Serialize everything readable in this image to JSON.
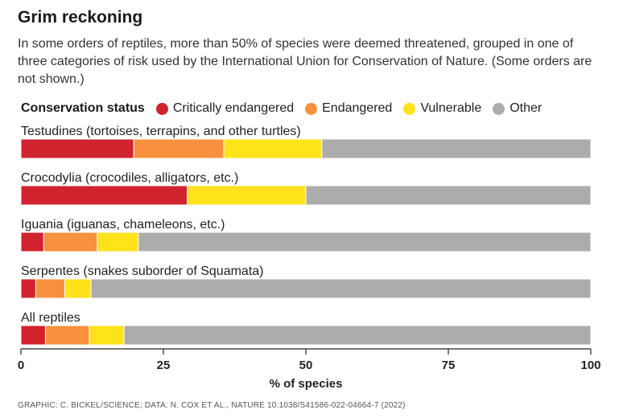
{
  "title": "Grim reckoning",
  "subtitle": "In some orders of reptiles, more than 50% of species were deemed threatened, grouped in one of three categories of risk used by the International Union for Conservation of Nature. (Some orders are not shown.)",
  "footer": "GRAPHIC: C. BICKEL/SCIENCE; DATA: N. COX ET AL., NATURE 10.1038/S41586-022-04664-7 (2022)",
  "colors": {
    "critically_endangered": "#d1232e",
    "endangered": "#f7913d",
    "vulnerable": "#fee21a",
    "other": "#acacac"
  },
  "chart_data": {
    "type": "bar",
    "orientation": "horizontal",
    "stacked": true,
    "legend_title": "Conservation status",
    "legend_position": "top-left",
    "categories": [
      "Testudines (tortoises, terrapins, and other turtles)",
      "Crocodylia (crocodiles, alligators, etc.)",
      "Iguania (iguanas, chameleons, etc.)",
      "Serpentes (snakes suborder of Squamata)",
      "All reptiles"
    ],
    "series": [
      {
        "name": "Critically endangered",
        "color": "#d1232e",
        "values": [
          19.8,
          29.2,
          4.0,
          2.6,
          4.3
        ]
      },
      {
        "name": "Endangered",
        "color": "#f7913d",
        "values": [
          15.8,
          0,
          9.4,
          5.1,
          7.7
        ]
      },
      {
        "name": "Vulnerable",
        "color": "#fee21a",
        "values": [
          17.2,
          20.8,
          7.2,
          4.6,
          6.1
        ]
      },
      {
        "name": "Other",
        "color": "#acacac",
        "values": [
          47.2,
          50.0,
          79.4,
          87.7,
          81.9
        ]
      }
    ],
    "xlabel": "% of species",
    "xlim": [
      0,
      100
    ],
    "xticks": [
      0,
      25,
      50,
      75,
      100
    ],
    "grid": false
  }
}
